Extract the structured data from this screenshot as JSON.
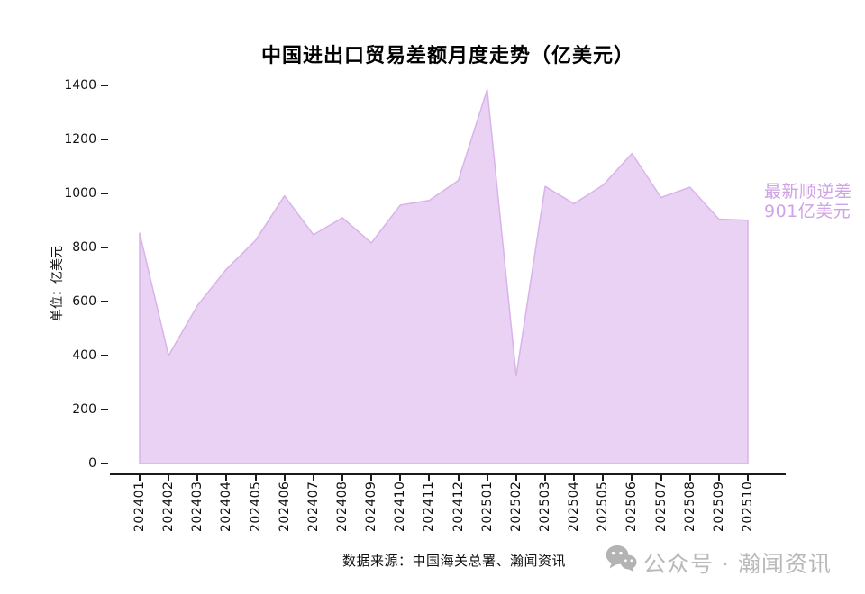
{
  "chart_data": {
    "type": "area",
    "title": "中国进出口贸易差额月度走势（亿美元）",
    "ylabel": "单位：亿美元",
    "xlabel": "",
    "x": [
      "202401",
      "202402",
      "202403",
      "202404",
      "202405",
      "202406",
      "202407",
      "202408",
      "202409",
      "202410",
      "202411",
      "202412",
      "202501",
      "202502",
      "202503",
      "202504",
      "202505",
      "202506",
      "202507",
      "202508",
      "202509",
      "202510"
    ],
    "values": [
      853,
      400,
      586,
      720,
      826,
      991,
      847,
      910,
      817,
      957,
      974,
      1048,
      1385,
      325,
      1026,
      962,
      1031,
      1148,
      985,
      1023,
      905,
      901
    ],
    "ylim": [
      0,
      1400
    ],
    "yticks": [
      0,
      200,
      400,
      600,
      800,
      1000,
      1200,
      1400
    ],
    "grid": false,
    "legend": null,
    "fill_color": "#e9d2f3",
    "edge_color": "#d9b3e9"
  },
  "annotation": {
    "line1": "最新顺逆差",
    "line2": "901亿美元",
    "color": "#d0a2e6",
    "latest_value": 901
  },
  "footer": {
    "source": "数据来源：中国海关总署、瀚闻资讯",
    "watermark": "公众号 · 瀚闻资讯",
    "watermark_color": "#b9b9b9",
    "icon": "wechat-icon",
    "icon_color": "#b3b3b3"
  }
}
